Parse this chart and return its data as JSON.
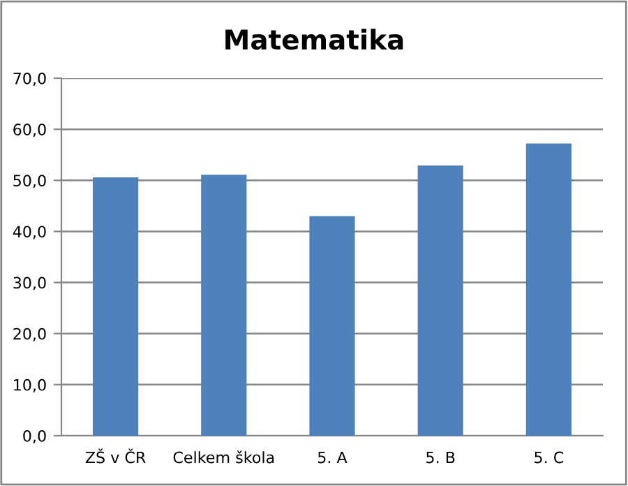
{
  "chart_data": {
    "type": "bar",
    "title": "Matematika",
    "categories": [
      "ZŠ v ČR",
      "Celkem škola",
      "5. A",
      "5. B",
      "5. C"
    ],
    "values": [
      50.6,
      51.1,
      43.0,
      52.9,
      57.2
    ],
    "color": "#4f81bd",
    "ylim": [
      0,
      70
    ],
    "yticks": [
      {
        "value": 0,
        "label": "0,0"
      },
      {
        "value": 10,
        "label": "10,0"
      },
      {
        "value": 20,
        "label": "20,0"
      },
      {
        "value": 30,
        "label": "30,0"
      },
      {
        "value": 40,
        "label": "40,0"
      },
      {
        "value": 50,
        "label": "50,0"
      },
      {
        "value": 60,
        "label": "60,0"
      },
      {
        "value": 70,
        "label": "70,0"
      }
    ],
    "grid": "y",
    "legend": false
  }
}
